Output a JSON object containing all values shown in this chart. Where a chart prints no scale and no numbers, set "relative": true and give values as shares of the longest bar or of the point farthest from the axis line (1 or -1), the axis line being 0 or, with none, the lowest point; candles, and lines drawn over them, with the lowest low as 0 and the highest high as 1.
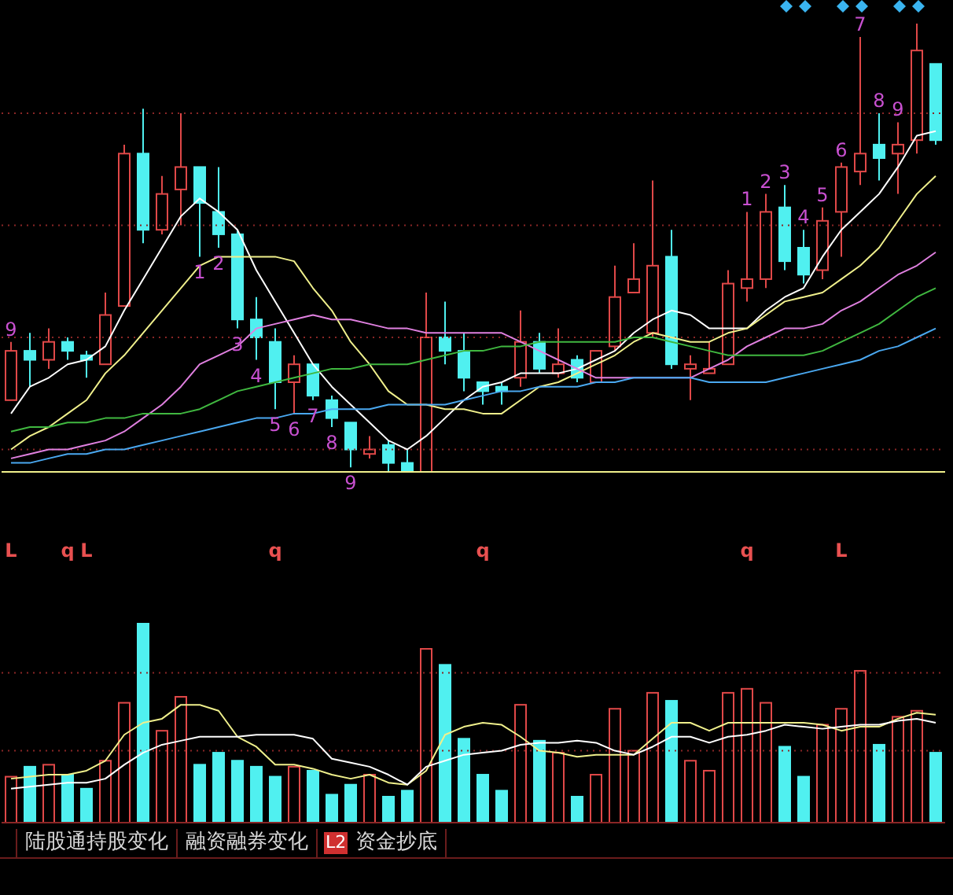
{
  "chart_data": [
    {
      "type": "candlestick",
      "relative": true,
      "categories": [
        null,
        null,
        null,
        null,
        null,
        null,
        null,
        null,
        null,
        null,
        null,
        null,
        null,
        null,
        null,
        null,
        null,
        null,
        null,
        null,
        null,
        null,
        null,
        null,
        null,
        null,
        null,
        null,
        null,
        null,
        null,
        null,
        null,
        null,
        null,
        null,
        null,
        null,
        null,
        null,
        null,
        null,
        null,
        null,
        null,
        null,
        null,
        null,
        null,
        null
      ],
      "ohlc": [
        [
          0.16,
          0.29,
          0.16,
          0.27
        ],
        [
          0.27,
          0.31,
          0.19,
          0.25
        ],
        [
          0.25,
          0.32,
          0.23,
          0.29
        ],
        [
          0.29,
          0.3,
          0.25,
          0.27
        ],
        [
          0.26,
          0.27,
          0.21,
          0.25
        ],
        [
          0.24,
          0.4,
          0.24,
          0.35
        ],
        [
          0.37,
          0.73,
          0.37,
          0.71
        ],
        [
          0.71,
          0.81,
          0.51,
          0.54
        ],
        [
          0.54,
          0.66,
          0.53,
          0.62
        ],
        [
          0.63,
          0.8,
          0.55,
          0.68
        ],
        [
          0.68,
          0.68,
          0.48,
          0.6
        ],
        [
          0.58,
          0.68,
          0.5,
          0.53
        ],
        [
          0.53,
          0.54,
          0.32,
          0.34
        ],
        [
          0.34,
          0.39,
          0.25,
          0.3
        ],
        [
          0.29,
          0.32,
          0.14,
          0.2
        ],
        [
          0.2,
          0.26,
          0.13,
          0.24
        ],
        [
          0.24,
          0.24,
          0.16,
          0.17
        ],
        [
          0.16,
          0.17,
          0.1,
          0.12
        ],
        [
          0.11,
          0.11,
          0.01,
          0.05
        ],
        [
          0.04,
          0.08,
          0.03,
          0.05
        ],
        [
          0.06,
          0.07,
          0,
          0.02
        ],
        [
          0.02,
          0.05,
          0,
          0
        ],
        [
          0,
          0.4,
          0,
          0.3
        ],
        [
          0.3,
          0.38,
          0.24,
          0.27
        ],
        [
          0.27,
          0.31,
          0.18,
          0.21
        ],
        [
          0.2,
          0.2,
          0.15,
          0.18
        ],
        [
          0.19,
          0.2,
          0.15,
          0.18
        ],
        [
          0.21,
          0.36,
          0.19,
          0.29
        ],
        [
          0.29,
          0.31,
          0.22,
          0.23
        ],
        [
          0.22,
          0.32,
          0.21,
          0.24
        ],
        [
          0.25,
          0.26,
          0.2,
          0.21
        ],
        [
          0.2,
          0.27,
          0.2,
          0.27
        ],
        [
          0.28,
          0.46,
          0.27,
          0.39
        ],
        [
          0.4,
          0.51,
          0.4,
          0.43
        ],
        [
          0.31,
          0.65,
          0.3,
          0.46
        ],
        [
          0.48,
          0.54,
          0.23,
          0.24
        ],
        [
          0.23,
          0.26,
          0.16,
          0.24
        ],
        [
          0.22,
          0.29,
          0.22,
          0.23
        ],
        [
          0.24,
          0.45,
          0.24,
          0.42
        ],
        [
          0.41,
          0.58,
          0.38,
          0.43
        ],
        [
          0.43,
          0.62,
          0.41,
          0.58
        ],
        [
          0.59,
          0.64,
          0.45,
          0.47
        ],
        [
          0.5,
          0.54,
          0.42,
          0.44
        ],
        [
          0.45,
          0.59,
          0.43,
          0.56
        ],
        [
          0.58,
          0.69,
          0.48,
          0.68
        ],
        [
          0.67,
          0.97,
          0.64,
          0.71
        ],
        [
          0.73,
          0.8,
          0.65,
          0.7
        ],
        [
          0.71,
          0.78,
          0.62,
          0.73
        ],
        [
          0.74,
          1,
          0.71,
          0.94
        ],
        [
          0.91,
          0.91,
          0.73,
          0.74
        ]
      ],
      "colors": [
        "#e04848",
        "#50f0f0",
        "#e04848",
        "#50f0f0",
        "#50f0f0",
        "#e04848",
        "#e04848",
        "#50f0f0",
        "#e04848",
        "#e04848",
        "#50f0f0",
        "#50f0f0",
        "#50f0f0",
        "#50f0f0",
        "#50f0f0",
        "#e04848",
        "#50f0f0",
        "#50f0f0",
        "#50f0f0",
        "#e04848",
        "#50f0f0",
        "#50f0f0",
        "#e04848",
        "#50f0f0",
        "#50f0f0",
        "#50f0f0",
        "#50f0f0",
        "#e04848",
        "#50f0f0",
        "#e04848",
        "#50f0f0",
        "#e04848",
        "#e04848",
        "#e04848",
        "#e04848",
        "#50f0f0",
        "#e04848",
        "#e04848",
        "#e04848",
        "#e04848",
        "#e04848",
        "#50f0f0",
        "#50f0f0",
        "#e04848",
        "#e04848",
        "#e04848",
        "#50f0f0",
        "#e04848",
        "#e04848",
        "#50f0f0"
      ],
      "value_labels": [
        "9",
        null,
        null,
        null,
        null,
        null,
        null,
        null,
        null,
        null,
        "1",
        "2",
        "3",
        "4",
        "5",
        "6",
        "7",
        "8",
        "9",
        null,
        null,
        null,
        null,
        null,
        null,
        null,
        null,
        null,
        null,
        null,
        null,
        null,
        null,
        null,
        null,
        null,
        null,
        null,
        null,
        "1",
        "2",
        "3",
        "4",
        "5",
        "6",
        "7",
        "8",
        "9",
        null,
        null
      ],
      "series": [
        {
          "type": "line",
          "color": "#ffffff",
          "values": [
            0.13,
            0.19,
            0.21,
            0.24,
            0.25,
            0.28,
            0.36,
            0.43,
            0.5,
            0.57,
            0.61,
            0.58,
            0.54,
            0.45,
            0.38,
            0.31,
            0.24,
            0.19,
            0.15,
            0.11,
            0.07,
            0.05,
            0.08,
            0.12,
            0.16,
            0.19,
            0.2,
            0.22,
            0.22,
            0.22,
            0.23,
            0.25,
            0.27,
            0.31,
            0.34,
            0.36,
            0.35,
            0.32,
            0.32,
            0.32,
            0.36,
            0.39,
            0.41,
            0.48,
            0.54,
            0.58,
            0.62,
            0.68,
            0.75,
            0.76
          ]
        },
        {
          "type": "line",
          "color": "#f0f08c",
          "values": [
            0.05,
            0.08,
            0.1,
            0.13,
            0.16,
            0.22,
            0.26,
            0.31,
            0.36,
            0.41,
            0.46,
            0.48,
            0.48,
            0.48,
            0.48,
            0.47,
            0.41,
            0.36,
            0.29,
            0.24,
            0.18,
            0.15,
            0.15,
            0.14,
            0.14,
            0.13,
            0.13,
            0.16,
            0.19,
            0.2,
            0.22,
            0.24,
            0.26,
            0.29,
            0.31,
            0.3,
            0.29,
            0.29,
            0.31,
            0.32,
            0.35,
            0.38,
            0.39,
            0.4,
            0.43,
            0.46,
            0.5,
            0.56,
            0.62,
            0.66
          ]
        },
        {
          "type": "line",
          "color": "#e080e0",
          "values": [
            0.03,
            0.04,
            0.05,
            0.05,
            0.06,
            0.07,
            0.09,
            0.12,
            0.15,
            0.19,
            0.24,
            0.26,
            0.28,
            0.32,
            0.33,
            0.34,
            0.35,
            0.34,
            0.34,
            0.33,
            0.32,
            0.32,
            0.31,
            0.31,
            0.31,
            0.31,
            0.31,
            0.29,
            0.27,
            0.25,
            0.23,
            0.21,
            0.21,
            0.21,
            0.21,
            0.21,
            0.21,
            0.23,
            0.25,
            0.28,
            0.3,
            0.32,
            0.32,
            0.33,
            0.36,
            0.38,
            0.41,
            0.44,
            0.46,
            0.49
          ]
        },
        {
          "type": "line",
          "color": "#40b840",
          "values": [
            0.09,
            0.1,
            0.1,
            0.11,
            0.11,
            0.12,
            0.12,
            0.13,
            0.13,
            0.13,
            0.14,
            0.16,
            0.18,
            0.19,
            0.2,
            0.21,
            0.22,
            0.23,
            0.23,
            0.24,
            0.24,
            0.24,
            0.25,
            0.26,
            0.27,
            0.27,
            0.28,
            0.28,
            0.29,
            0.29,
            0.29,
            0.29,
            0.29,
            0.3,
            0.3,
            0.29,
            0.28,
            0.27,
            0.26,
            0.26,
            0.26,
            0.26,
            0.26,
            0.27,
            0.29,
            0.31,
            0.33,
            0.36,
            0.39,
            0.41
          ]
        },
        {
          "type": "line",
          "color": "#4aa8f0",
          "values": [
            0.02,
            0.02,
            0.03,
            0.04,
            0.04,
            0.05,
            0.05,
            0.06,
            0.07,
            0.08,
            0.09,
            0.1,
            0.11,
            0.12,
            0.12,
            0.13,
            0.13,
            0.14,
            0.14,
            0.14,
            0.15,
            0.15,
            0.15,
            0.15,
            0.16,
            0.17,
            0.18,
            0.18,
            0.19,
            0.19,
            0.19,
            0.2,
            0.2,
            0.21,
            0.21,
            0.21,
            0.21,
            0.2,
            0.2,
            0.2,
            0.2,
            0.21,
            0.22,
            0.23,
            0.24,
            0.25,
            0.27,
            0.28,
            0.3,
            0.32
          ]
        }
      ],
      "ref_lines": [
        {
          "axis": "y",
          "value": 0,
          "color": "#f0f08c",
          "line_style": "solid"
        },
        {
          "axis": "y",
          "value": 0.05,
          "color": "#8a2626",
          "line_style": "dotted"
        },
        {
          "axis": "y",
          "value": 0.3,
          "color": "#8a2626",
          "line_style": "dotted"
        },
        {
          "axis": "y",
          "value": 0.55,
          "color": "#8a2626",
          "line_style": "dotted"
        },
        {
          "axis": "y",
          "value": 0.8,
          "color": "#8a2626",
          "line_style": "dotted"
        }
      ]
    },
    {
      "type": "bar",
      "relative": true,
      "categories": [
        "L",
        null,
        null,
        "q",
        "L",
        null,
        null,
        null,
        null,
        null,
        null,
        null,
        null,
        null,
        "q",
        null,
        null,
        null,
        null,
        null,
        null,
        null,
        null,
        null,
        null,
        "q",
        null,
        null,
        null,
        null,
        null,
        null,
        null,
        null,
        null,
        null,
        null,
        null,
        null,
        "q",
        null,
        null,
        null,
        null,
        "L",
        null,
        null,
        null,
        null,
        null
      ],
      "series": [
        {
          "type": "bar",
          "colors": [
            "#e04848",
            "#50f0f0",
            "#e04848",
            "#50f0f0",
            "#50f0f0",
            "#e04848",
            "#e04848",
            "#50f0f0",
            "#e04848",
            "#e04848",
            "#50f0f0",
            "#50f0f0",
            "#50f0f0",
            "#50f0f0",
            "#50f0f0",
            "#e04848",
            "#50f0f0",
            "#50f0f0",
            "#50f0f0",
            "#e04848",
            "#50f0f0",
            "#50f0f0",
            "#e04848",
            "#50f0f0",
            "#50f0f0",
            "#50f0f0",
            "#50f0f0",
            "#e04848",
            "#50f0f0",
            "#e04848",
            "#50f0f0",
            "#e04848",
            "#e04848",
            "#e04848",
            "#e04848",
            "#50f0f0",
            "#e04848",
            "#e04848",
            "#e04848",
            "#e04848",
            "#e04848",
            "#50f0f0",
            "#50f0f0",
            "#e04848",
            "#e04848",
            "#e04848",
            "#50f0f0",
            "#e04848",
            "#e04848",
            "#50f0f0"
          ],
          "values": [
            0.23,
            0.28,
            0.29,
            0.24,
            0.17,
            0.31,
            0.6,
            1,
            0.46,
            0.63,
            0.29,
            0.35,
            0.31,
            0.28,
            0.23,
            0.28,
            0.26,
            0.14,
            0.19,
            0.24,
            0.13,
            0.16,
            0.87,
            0.79,
            0.42,
            0.24,
            0.16,
            0.59,
            0.41,
            0.35,
            0.13,
            0.24,
            0.57,
            0.36,
            0.65,
            0.61,
            0.31,
            0.26,
            0.65,
            0.67,
            0.6,
            0.38,
            0.23,
            0.49,
            0.57,
            0.76,
            0.39,
            0.53,
            0.56,
            0.35
          ]
        },
        {
          "type": "line",
          "color": "#f0f08c",
          "values": [
            0.22,
            0.23,
            0.24,
            0.24,
            0.26,
            0.31,
            0.44,
            0.5,
            0.52,
            0.59,
            0.59,
            0.56,
            0.43,
            0.38,
            0.29,
            0.29,
            0.27,
            0.24,
            0.22,
            0.24,
            0.2,
            0.19,
            0.26,
            0.44,
            0.48,
            0.5,
            0.49,
            0.43,
            0.36,
            0.35,
            0.33,
            0.34,
            0.34,
            0.34,
            0.42,
            0.5,
            0.5,
            0.46,
            0.5,
            0.5,
            0.5,
            0.5,
            0.5,
            0.49,
            0.46,
            0.48,
            0.48,
            0.52,
            0.55,
            0.54
          ]
        },
        {
          "type": "line",
          "color": "#ffffff",
          "values": [
            0.17,
            0.18,
            0.19,
            0.2,
            0.2,
            0.22,
            0.29,
            0.35,
            0.39,
            0.41,
            0.43,
            0.43,
            0.43,
            0.44,
            0.44,
            0.44,
            0.42,
            0.32,
            0.3,
            0.28,
            0.24,
            0.19,
            0.28,
            0.31,
            0.34,
            0.35,
            0.36,
            0.39,
            0.4,
            0.4,
            0.41,
            0.4,
            0.36,
            0.34,
            0.38,
            0.43,
            0.43,
            0.4,
            0.43,
            0.44,
            0.46,
            0.49,
            0.48,
            0.47,
            0.48,
            0.49,
            0.49,
            0.51,
            0.52,
            0.5
          ]
        }
      ],
      "ref_lines": [
        {
          "axis": "y",
          "value": 0.36,
          "color": "#8a2626",
          "line_style": "dotted"
        },
        {
          "axis": "y",
          "value": 0.75,
          "color": "#8a2626",
          "line_style": "dotted"
        }
      ],
      "annotations": [
        "陆股通持股变化",
        "融资融券变化",
        "L2",
        "资金抄底"
      ]
    }
  ]
}
